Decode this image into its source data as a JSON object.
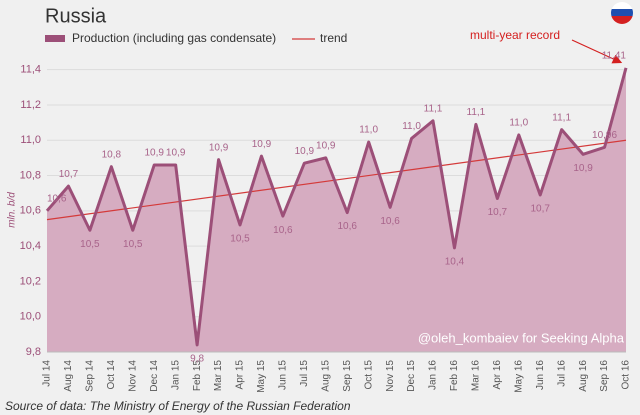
{
  "chart_data": {
    "type": "area-line",
    "title": "Russia",
    "y_label": "mln. b/d",
    "categories": [
      "Jul 14",
      "Aug 14",
      "Sep 14",
      "Oct 14",
      "Nov 14",
      "Dec 14",
      "Jan 15",
      "Feb 15",
      "Mar 15",
      "Apr 15",
      "May 15",
      "Jun 15",
      "Jul 15",
      "Aug 15",
      "Sep 15",
      "Oct 15",
      "Nov 15",
      "Dec 15",
      "Jan 16",
      "Feb 16",
      "Mar 16",
      "Apr 16",
      "May 16",
      "Jun 16",
      "Jul 16",
      "Aug 16",
      "Sep 16",
      "Oct 16"
    ],
    "series": [
      {
        "name": "Production (including gas condensate)",
        "color": "#9c4f78",
        "fill": "#d6acc1",
        "values": [
          10.6,
          10.74,
          10.49,
          10.85,
          10.49,
          10.86,
          10.86,
          9.84,
          10.89,
          10.52,
          10.91,
          10.57,
          10.87,
          10.9,
          10.59,
          10.99,
          10.62,
          11.01,
          11.11,
          10.39,
          11.09,
          10.67,
          11.03,
          10.69,
          11.06,
          10.92,
          10.96,
          11.41
        ],
        "value_labels": [
          "10,6",
          "10,7",
          "10,5",
          "10,8",
          "10,5",
          "10,9",
          "10,9",
          "9,8",
          "10,9",
          "10,5",
          "10,9",
          "10,6",
          "10,9",
          "10,9",
          "10,6",
          "11,0",
          "10,6",
          "11,0",
          "11,1",
          "10,4",
          "11,1",
          "10,7",
          "11,0",
          "10,7",
          "11,1",
          "10,9",
          "10,96",
          "11,41"
        ]
      }
    ],
    "trend": {
      "name": "trend",
      "color": "#d43a3a",
      "start": 10.55,
      "end": 11.0
    },
    "ylim": [
      9.8,
      11.5
    ],
    "yticks": [
      {
        "value": 9.8,
        "label": "9,8"
      },
      {
        "value": 10.0,
        "label": "10,0"
      },
      {
        "value": 10.2,
        "label": "10,2"
      },
      {
        "value": 10.4,
        "label": "10,4"
      },
      {
        "value": 10.6,
        "label": "10,6"
      },
      {
        "value": 10.8,
        "label": "10,8"
      },
      {
        "value": 11.0,
        "label": "11,0"
      },
      {
        "value": 11.2,
        "label": "11,2"
      },
      {
        "value": 11.4,
        "label": "11,4"
      }
    ],
    "grid": true,
    "annotations": [
      "multi-year record",
      "@oleh_kombaiev for Seeking Alpha"
    ],
    "source": "Source of data: The Ministry of Energy of the Russian Federation"
  }
}
